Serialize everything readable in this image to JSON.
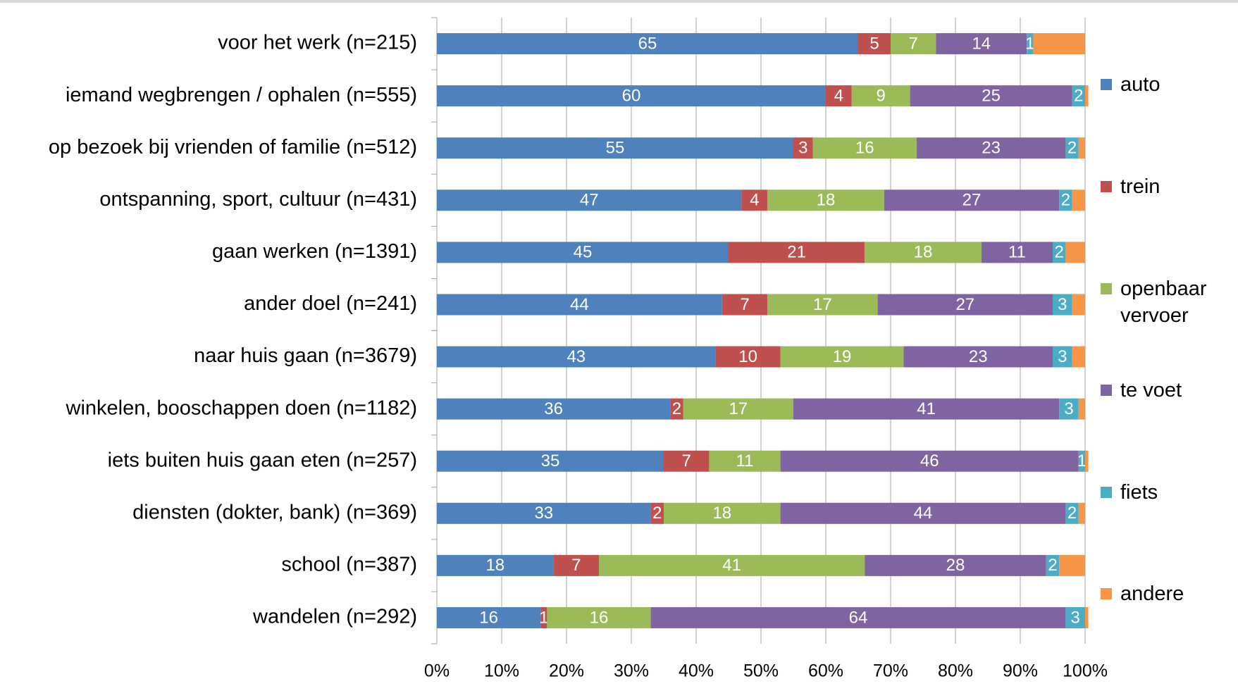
{
  "chart_data": {
    "type": "stacked_barh",
    "categories": [
      "voor het werk (n=215)",
      "iemand wegbrengen / ophalen (n=555)",
      "op bezoek bij vrienden of familie (n=512)",
      "ontspanning, sport, cultuur (n=431)",
      "gaan werken (n=1391)",
      "ander doel (n=241)",
      "naar huis gaan (n=3679)",
      "winkelen, booschappen doen (n=1182)",
      "iets buiten huis gaan eten (n=257)",
      "diensten (dokter, bank) (n=369)",
      "school (n=387)",
      "wandelen (n=292)"
    ],
    "series": [
      {
        "name": "auto",
        "color": "#4f81bd",
        "data_labels": true,
        "values": [
          65,
          60,
          55,
          47,
          45,
          44,
          43,
          36,
          35,
          33,
          18,
          16
        ]
      },
      {
        "name": "trein",
        "color": "#c0504d",
        "data_labels": true,
        "values": [
          5,
          4,
          3,
          4,
          21,
          7,
          10,
          2,
          7,
          2,
          7,
          1
        ]
      },
      {
        "name": "openbaar vervoer",
        "color": "#9bbb59",
        "data_labels": true,
        "values": [
          7,
          9,
          16,
          18,
          18,
          17,
          19,
          17,
          11,
          18,
          41,
          16
        ]
      },
      {
        "name": "te voet",
        "color": "#8064a2",
        "data_labels": true,
        "values": [
          14,
          25,
          23,
          27,
          11,
          27,
          23,
          41,
          46,
          44,
          28,
          64
        ]
      },
      {
        "name": "fiets",
        "color": "#4bacc6",
        "data_labels": true,
        "values": [
          1,
          2,
          2,
          2,
          2,
          3,
          3,
          3,
          1,
          2,
          2,
          3
        ]
      },
      {
        "name": "andere",
        "color": "#f79646",
        "data_labels": false,
        "values": [
          8,
          0.5,
          1,
          2,
          3,
          2,
          2,
          1,
          0.5,
          1,
          4,
          0.5
        ]
      }
    ],
    "xlim": [
      0,
      100
    ],
    "xticks": [
      {
        "value": 0,
        "label": "0%"
      },
      {
        "value": 10,
        "label": "10%"
      },
      {
        "value": 20,
        "label": "20%"
      },
      {
        "value": 30,
        "label": "30%"
      },
      {
        "value": 40,
        "label": "40%"
      },
      {
        "value": 50,
        "label": "50%"
      },
      {
        "value": 60,
        "label": "60%"
      },
      {
        "value": 70,
        "label": "70%"
      },
      {
        "value": 80,
        "label": "80%"
      },
      {
        "value": 90,
        "label": "90%"
      },
      {
        "value": 100,
        "label": "100%"
      }
    ],
    "grid": true,
    "legend": "right"
  }
}
